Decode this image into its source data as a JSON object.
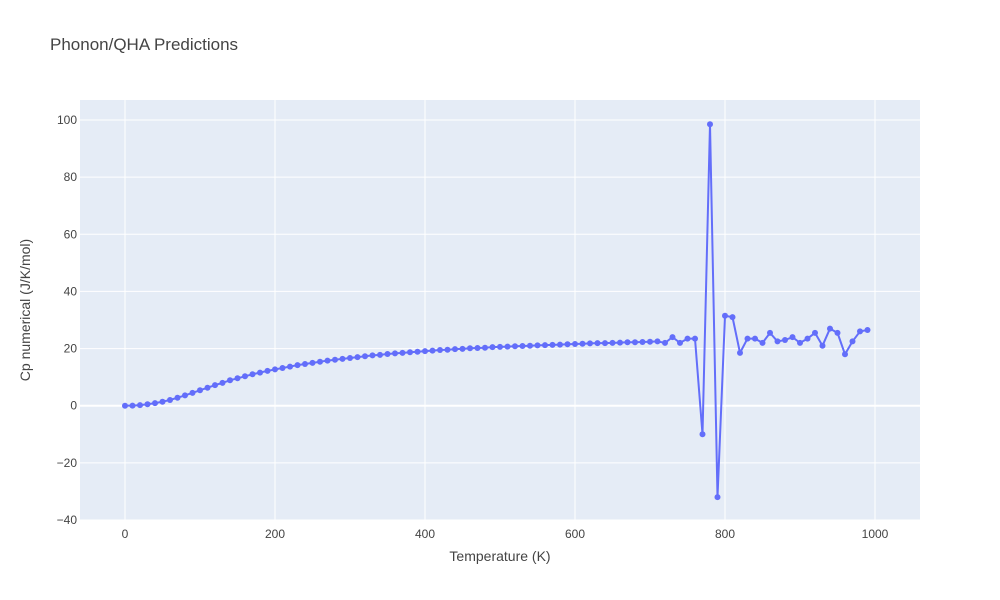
{
  "chart_data": {
    "type": "line",
    "title": "Phonon/QHA Predictions",
    "xlabel": "Temperature (K)",
    "ylabel": "Cp numerical (J/K/mol)",
    "xlim": [
      -60,
      1060
    ],
    "ylim": [
      -40,
      107
    ],
    "x_ticks": [
      0,
      200,
      400,
      600,
      800,
      1000
    ],
    "y_ticks": [
      -40,
      -20,
      0,
      20,
      40,
      60,
      80,
      100
    ],
    "grid": true,
    "legend": "none",
    "series": [
      {
        "color": "#636efa",
        "mode": "lines+markers",
        "x": [
          0,
          10,
          20,
          30,
          40,
          50,
          60,
          70,
          80,
          90,
          100,
          110,
          120,
          130,
          140,
          150,
          160,
          170,
          180,
          190,
          200,
          210,
          220,
          230,
          240,
          250,
          260,
          270,
          280,
          290,
          300,
          310,
          320,
          330,
          340,
          350,
          360,
          370,
          380,
          390,
          400,
          410,
          420,
          430,
          440,
          450,
          460,
          470,
          480,
          490,
          500,
          510,
          520,
          530,
          540,
          550,
          560,
          570,
          580,
          590,
          600,
          610,
          620,
          630,
          640,
          650,
          660,
          670,
          680,
          690,
          700,
          710,
          720,
          730,
          740,
          750,
          760,
          770,
          780,
          790,
          800,
          810,
          820,
          830,
          840,
          850,
          860,
          870,
          880,
          890,
          900,
          910,
          920,
          930,
          940,
          950,
          960,
          970,
          980,
          990
        ],
        "y": [
          0,
          0.05,
          0.2,
          0.5,
          0.9,
          1.4,
          2.0,
          2.8,
          3.6,
          4.5,
          5.4,
          6.3,
          7.2,
          8.0,
          8.9,
          9.6,
          10.3,
          11.0,
          11.6,
          12.2,
          12.7,
          13.2,
          13.7,
          14.2,
          14.6,
          15.0,
          15.4,
          15.8,
          16.1,
          16.4,
          16.7,
          17.0,
          17.3,
          17.6,
          17.8,
          18.1,
          18.3,
          18.5,
          18.7,
          18.9,
          19.1,
          19.3,
          19.5,
          19.6,
          19.8,
          19.9,
          20.1,
          20.2,
          20.3,
          20.5,
          20.6,
          20.7,
          20.8,
          20.9,
          21.0,
          21.1,
          21.2,
          21.3,
          21.4,
          21.5,
          21.6,
          21.7,
          21.8,
          21.9,
          21.9,
          22.0,
          22.1,
          22.2,
          22.2,
          22.3,
          22.4,
          22.5,
          22.0,
          24.0,
          22.0,
          23.5,
          23.5,
          -10.0,
          98.5,
          -32.0,
          31.5,
          31.0,
          18.5,
          23.5,
          23.5,
          22.0,
          25.5,
          22.5,
          23.0,
          24.0,
          22.0,
          23.5,
          25.5,
          21.0,
          27.0,
          25.5,
          18.0,
          22.5,
          26.0,
          26.5
        ]
      }
    ]
  }
}
